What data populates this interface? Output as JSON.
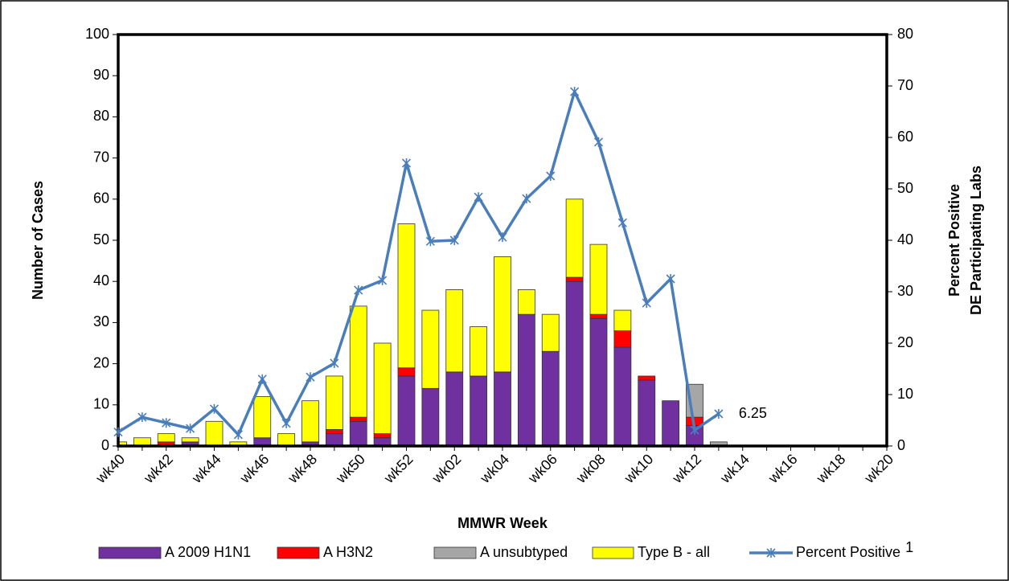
{
  "chart_data": {
    "type": "bar",
    "x_label": "MMWR Week",
    "y_label": "Number of Cases",
    "y2_label": [
      "Percent Positive",
      "DE Participating Labs"
    ],
    "categories": [
      "wk40",
      null,
      "wk42",
      null,
      "wk44",
      null,
      "wk46",
      null,
      "wk48",
      null,
      "wk50",
      null,
      "wk52",
      null,
      "wk02",
      null,
      "wk04",
      null,
      "wk06",
      null,
      "wk08",
      null,
      "wk10",
      null,
      "wk12",
      null,
      "wk14",
      null,
      "wk16",
      null,
      "wk18",
      null,
      "wk20"
    ],
    "series": [
      {
        "name": "A 2009 H1N1",
        "color": "#7030a0",
        "values": [
          0,
          0,
          0,
          1,
          0,
          0,
          2,
          0,
          1,
          3,
          6,
          2,
          17,
          14,
          18,
          17,
          18,
          32,
          23,
          40,
          31,
          24,
          16,
          11,
          5,
          0,
          null,
          null,
          null,
          null,
          null,
          null,
          null
        ]
      },
      {
        "name": "A H3N2",
        "color": "#ff0000",
        "values": [
          0,
          0,
          1,
          0,
          0,
          0,
          0,
          0,
          0,
          1,
          1,
          1,
          2,
          0,
          0,
          0,
          0,
          0,
          0,
          1,
          1,
          4,
          1,
          0,
          2,
          0,
          null,
          null,
          null,
          null,
          null,
          null,
          null
        ]
      },
      {
        "name": "A unsubtyped",
        "color": "#a6a6a6",
        "values": [
          0,
          0,
          0,
          0,
          0,
          0,
          0,
          0,
          0,
          0,
          0,
          0,
          0,
          0,
          0,
          0,
          0,
          0,
          0,
          0,
          0,
          0,
          0,
          0,
          8,
          1,
          null,
          null,
          null,
          null,
          null,
          null,
          null
        ]
      },
      {
        "name": "Type B - all",
        "color": "#ffff00",
        "values": [
          1,
          2,
          2,
          1,
          6,
          1,
          10,
          3,
          10,
          13,
          27,
          22,
          35,
          19,
          20,
          12,
          28,
          6,
          9,
          19,
          17,
          5,
          0,
          0,
          0,
          0,
          null,
          null,
          null,
          null,
          null,
          null,
          null
        ]
      },
      {
        "name": "Percent Positive",
        "name_superscript": "1",
        "type": "line",
        "axis": "y2",
        "color": "#4a7ebb",
        "marker": "asterisk",
        "values": [
          2.7,
          5.6,
          4.5,
          3.4,
          7.2,
          2.2,
          13,
          4.4,
          13.4,
          16.1,
          30.3,
          32.2,
          55,
          39.8,
          40,
          48.4,
          40.6,
          48.1,
          52.5,
          68.9,
          59.1,
          43.4,
          27.8,
          32.5,
          3.1,
          6.25,
          null,
          null,
          null,
          null,
          null,
          null,
          null
        ],
        "labeled_point": 25
      }
    ],
    "stacked": true,
    "ylim": [
      0,
      100
    ],
    "yticks": [
      0,
      10,
      20,
      30,
      40,
      50,
      60,
      70,
      80,
      90,
      100
    ],
    "y2lim": [
      0,
      80
    ],
    "y2ticks": [
      0,
      10,
      20,
      30,
      40,
      50,
      60,
      70,
      80
    ],
    "grid": false,
    "legend": "bottom"
  }
}
